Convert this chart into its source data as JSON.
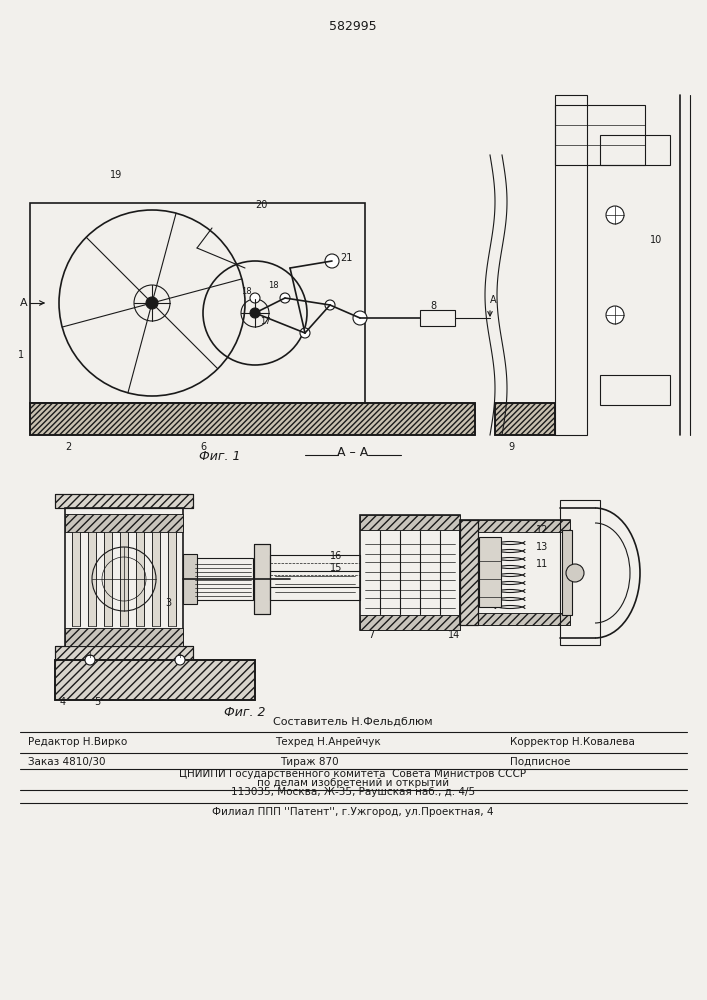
{
  "patent_number": "582995",
  "bg_color": "#f2f0ec",
  "line_color": "#1a1a1a",
  "editor_line": "Редактор Н.Вирко",
  "composer_line": "Составитель Н.Фельдблюм",
  "techred_line": "Техред Н.Анрейчук",
  "corrector_line": "Корректор Н.Ковалева",
  "order_line": "Заказ 4810/30",
  "tirazh_line": "Тираж 870",
  "podpisnoe_line": "Подписное",
  "cnipi_line": "ЦНИИПИ Государственного комитета  Совета Министров СССР",
  "podelov_line": "по делам изобретений и открытий",
  "address_line": "113035, Москва, Ж-35, Раушская наб., д. 4/5",
  "filial_line": "Филиал ППП ''Патент'', г.Ужгород, ул.Проектная, 4"
}
